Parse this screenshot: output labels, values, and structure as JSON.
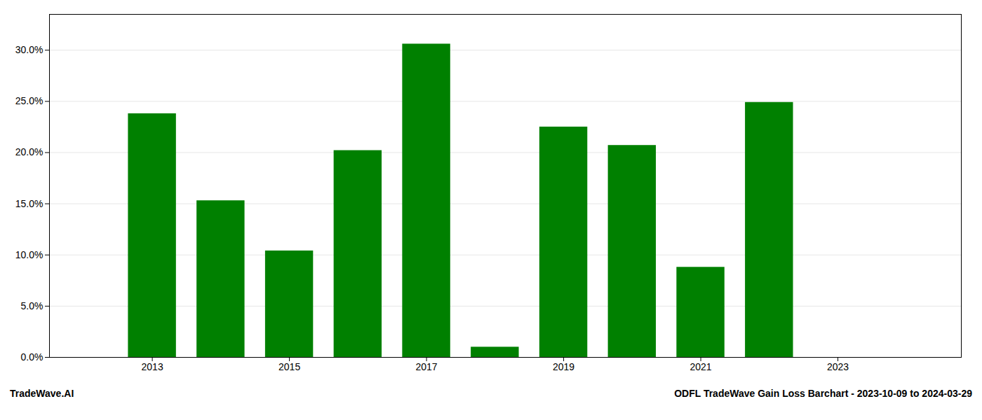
{
  "chart_data": {
    "type": "bar",
    "x": [
      2013,
      2014,
      2015,
      2016,
      2017,
      2018,
      2019,
      2020,
      2021,
      2022,
      2023
    ],
    "values": [
      0.238,
      0.153,
      0.104,
      0.202,
      0.306,
      0.01,
      0.225,
      0.207,
      0.088,
      0.249,
      0.0
    ],
    "color": "#008000",
    "xlim": [
      2011.5,
      2024.8
    ],
    "xticks": [
      2013,
      2015,
      2017,
      2019,
      2021,
      2023
    ],
    "ylim": [
      0.0,
      0.335
    ],
    "yticks": [
      {
        "value": 0.0,
        "label": "0.0%"
      },
      {
        "value": 0.05,
        "label": "5.0%"
      },
      {
        "value": 0.1,
        "label": "10.0%"
      },
      {
        "value": 0.15,
        "label": "15.0%"
      },
      {
        "value": 0.2,
        "label": "20.0%"
      },
      {
        "value": 0.25,
        "label": "25.0%"
      },
      {
        "value": 0.3,
        "label": "30.0%"
      }
    ],
    "grid": true,
    "annotations": [
      "TradeWave.AI",
      "ODFL TradeWave Gain Loss Barchart - 2023-10-09 to 2024-03-29"
    ]
  }
}
